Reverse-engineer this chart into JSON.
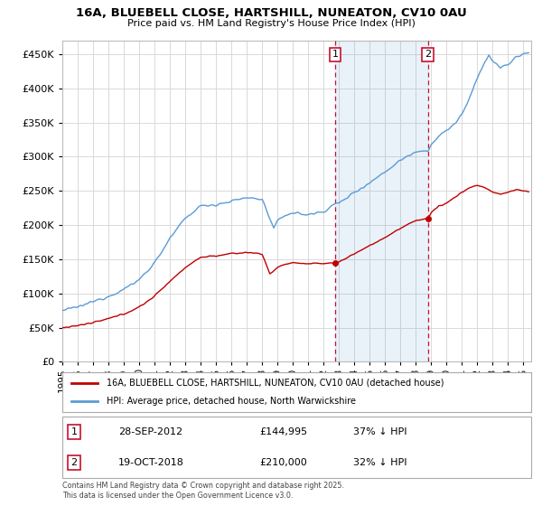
{
  "title": "16A, BLUEBELL CLOSE, HARTSHILL, NUNEATON, CV10 0AU",
  "subtitle": "Price paid vs. HM Land Registry's House Price Index (HPI)",
  "footer": "Contains HM Land Registry data © Crown copyright and database right 2025.\nThis data is licensed under the Open Government Licence v3.0.",
  "legend_line1": "16A, BLUEBELL CLOSE, HARTSHILL, NUNEATON, CV10 0AU (detached house)",
  "legend_line2": "HPI: Average price, detached house, North Warwickshire",
  "annotation1_label": "1",
  "annotation1_date": "28-SEP-2012",
  "annotation1_price": "£144,995",
  "annotation1_hpi": "37% ↓ HPI",
  "annotation2_label": "2",
  "annotation2_date": "19-OCT-2018",
  "annotation2_price": "£210,000",
  "annotation2_hpi": "32% ↓ HPI",
  "xlim": [
    1995.0,
    2025.5
  ],
  "ylim": [
    0,
    470000
  ],
  "yticks": [
    0,
    50000,
    100000,
    150000,
    200000,
    250000,
    300000,
    350000,
    400000,
    450000
  ],
  "xticks": [
    1995,
    1996,
    1997,
    1998,
    1999,
    2000,
    2001,
    2002,
    2003,
    2004,
    2005,
    2006,
    2007,
    2008,
    2009,
    2010,
    2011,
    2012,
    2013,
    2014,
    2015,
    2016,
    2017,
    2018,
    2019,
    2020,
    2021,
    2022,
    2023,
    2024,
    2025
  ],
  "hpi_color": "#5b9bd5",
  "price_color": "#c00000",
  "annotation_vline_color": "#c8102e",
  "annotation_box_color": "#c8102e",
  "background_color": "#ffffff",
  "grid_color": "#d9d9d9",
  "sale1_x": 2012.75,
  "sale1_y": 144995,
  "sale2_x": 2018.79,
  "sale2_y": 210000,
  "hpi_keypoints": [
    [
      1995.0,
      75000
    ],
    [
      1996.0,
      80000
    ],
    [
      1997.0,
      88000
    ],
    [
      1998.0,
      96000
    ],
    [
      1999.0,
      106000
    ],
    [
      2000.0,
      120000
    ],
    [
      2001.0,
      145000
    ],
    [
      2002.0,
      180000
    ],
    [
      2003.0,
      210000
    ],
    [
      2004.0,
      228000
    ],
    [
      2005.0,
      230000
    ],
    [
      2006.0,
      235000
    ],
    [
      2007.0,
      240000
    ],
    [
      2008.0,
      238000
    ],
    [
      2008.75,
      195000
    ],
    [
      2009.0,
      205000
    ],
    [
      2009.5,
      215000
    ],
    [
      2010.0,
      218000
    ],
    [
      2011.0,
      215000
    ],
    [
      2012.0,
      220000
    ],
    [
      2012.75,
      231000
    ],
    [
      2013.0,
      232000
    ],
    [
      2014.0,
      248000
    ],
    [
      2015.0,
      262000
    ],
    [
      2016.0,
      278000
    ],
    [
      2017.0,
      295000
    ],
    [
      2018.0,
      308000
    ],
    [
      2018.79,
      309000
    ],
    [
      2019.0,
      318000
    ],
    [
      2019.5,
      330000
    ],
    [
      2020.0,
      338000
    ],
    [
      2020.5,
      348000
    ],
    [
      2021.0,
      362000
    ],
    [
      2021.5,
      385000
    ],
    [
      2022.0,
      415000
    ],
    [
      2022.5,
      440000
    ],
    [
      2022.75,
      448000
    ],
    [
      2023.0,
      440000
    ],
    [
      2023.5,
      430000
    ],
    [
      2024.0,
      435000
    ],
    [
      2024.5,
      445000
    ],
    [
      2025.0,
      450000
    ],
    [
      2025.25,
      452000
    ]
  ],
  "price_keypoints": [
    [
      1995.0,
      50000
    ],
    [
      1996.0,
      53000
    ],
    [
      1997.0,
      57000
    ],
    [
      1998.0,
      63000
    ],
    [
      1999.0,
      70000
    ],
    [
      2000.0,
      80000
    ],
    [
      2001.0,
      96000
    ],
    [
      2002.0,
      118000
    ],
    [
      2003.0,
      138000
    ],
    [
      2004.0,
      153000
    ],
    [
      2005.0,
      155000
    ],
    [
      2006.0,
      158000
    ],
    [
      2007.0,
      160000
    ],
    [
      2008.0,
      158000
    ],
    [
      2008.5,
      128000
    ],
    [
      2009.0,
      138000
    ],
    [
      2009.5,
      143000
    ],
    [
      2010.0,
      145000
    ],
    [
      2011.0,
      143000
    ],
    [
      2012.0,
      144000
    ],
    [
      2012.75,
      144995
    ],
    [
      2013.0,
      146000
    ],
    [
      2014.0,
      158000
    ],
    [
      2015.0,
      170000
    ],
    [
      2016.0,
      182000
    ],
    [
      2017.0,
      195000
    ],
    [
      2018.0,
      207000
    ],
    [
      2018.79,
      210000
    ],
    [
      2019.0,
      218000
    ],
    [
      2019.5,
      228000
    ],
    [
      2020.0,
      232000
    ],
    [
      2020.5,
      240000
    ],
    [
      2021.0,
      248000
    ],
    [
      2021.5,
      255000
    ],
    [
      2022.0,
      258000
    ],
    [
      2022.5,
      255000
    ],
    [
      2023.0,
      248000
    ],
    [
      2023.5,
      245000
    ],
    [
      2024.0,
      248000
    ],
    [
      2024.5,
      252000
    ],
    [
      2025.0,
      250000
    ],
    [
      2025.25,
      249000
    ]
  ]
}
